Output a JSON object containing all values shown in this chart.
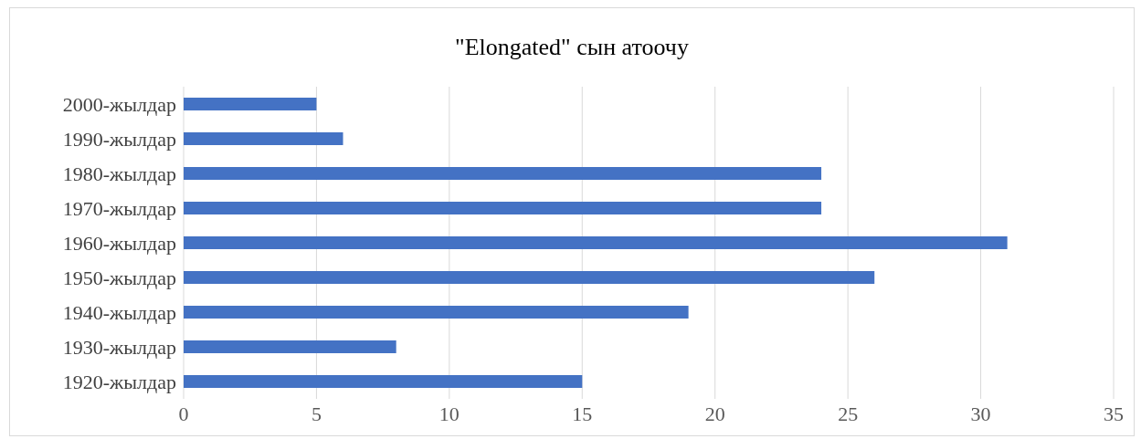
{
  "chart_data": {
    "type": "bar",
    "orientation": "horizontal",
    "title": "\"Elongated\" сын атоочу",
    "categories": [
      "2000-жылдар",
      "1990-жылдар",
      "1980-жылдар",
      "1970-жылдар",
      "1960-жылдар",
      "1950-жылдар",
      "1940-жылдар",
      "1930-жылдар",
      "1920-жылдар"
    ],
    "values": [
      5,
      6,
      24,
      24,
      31,
      26,
      19,
      8,
      15
    ],
    "color": "#4472c4",
    "xlim": [
      0,
      35
    ],
    "xticks": [
      0,
      5,
      10,
      15,
      20,
      25,
      30,
      35
    ],
    "grid": "x"
  }
}
